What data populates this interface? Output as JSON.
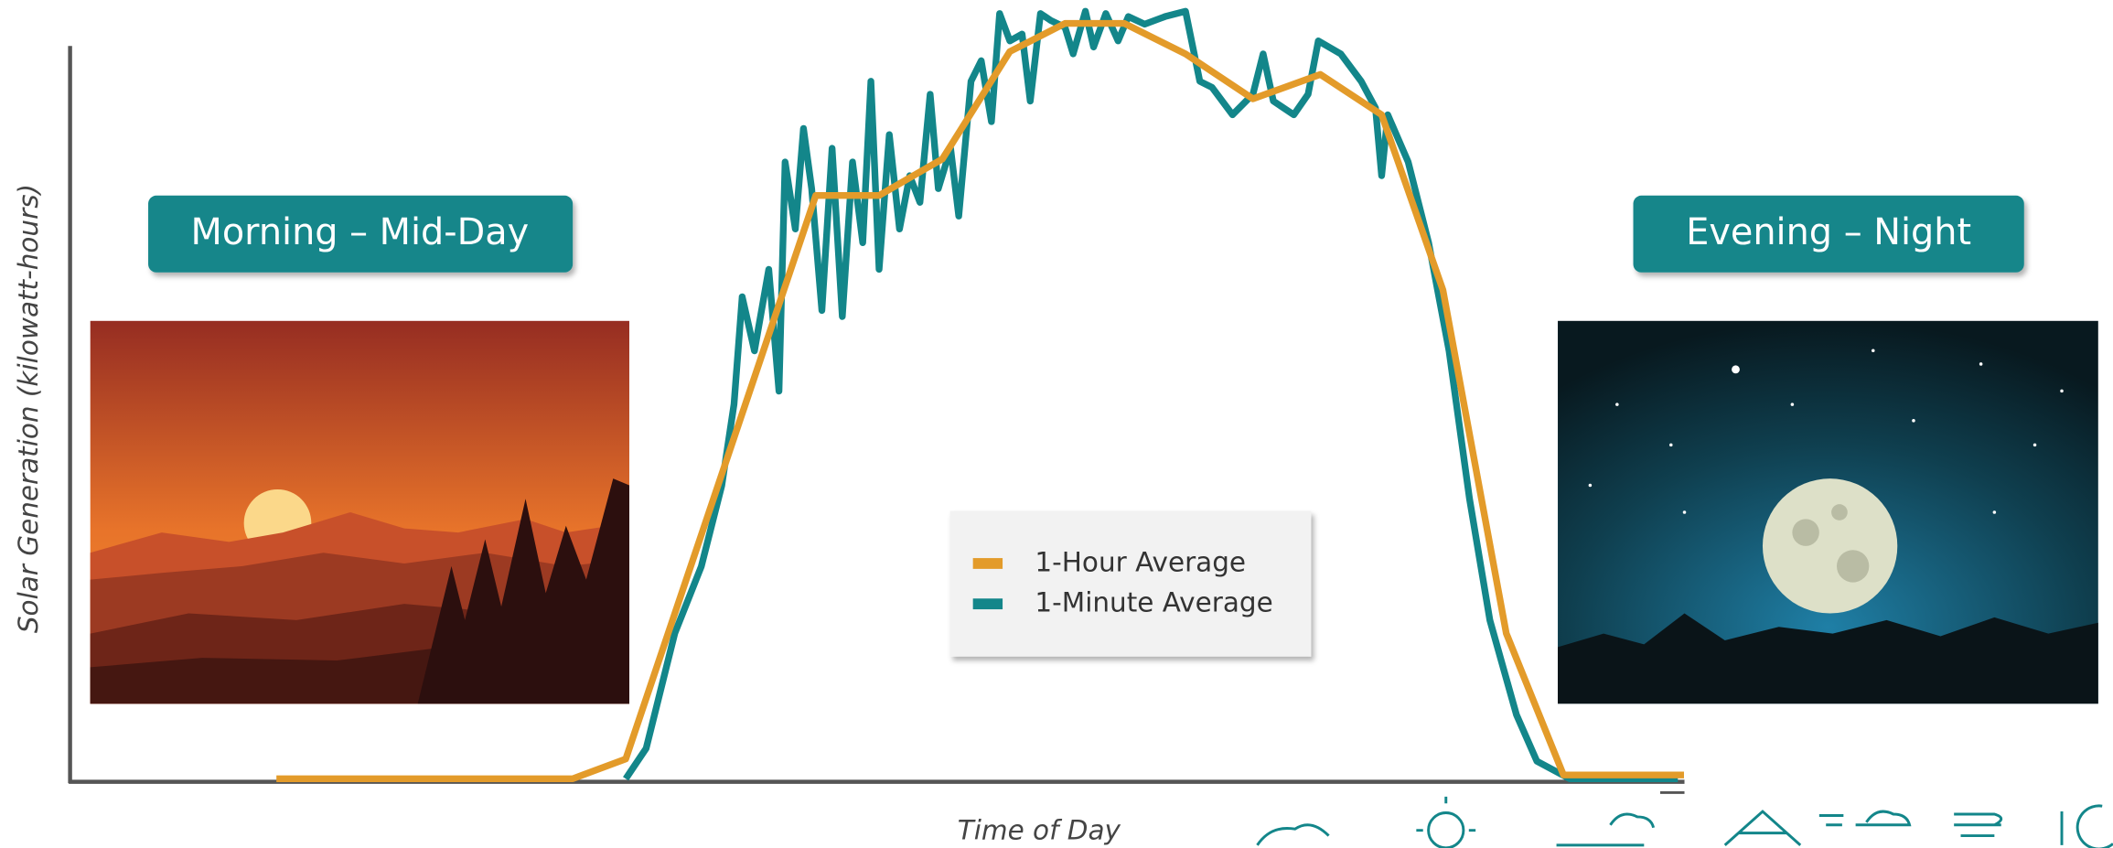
{
  "chart_data": {
    "type": "line",
    "y_label": "Solar Generation (kilowatt-hours)",
    "x_label": "Time of Day",
    "annotations": [
      "Morning – Mid-Day",
      "Evening – Night"
    ],
    "legend": "center",
    "xlim": [
      0,
      100
    ],
    "ylim": [
      0,
      100
    ],
    "series": [
      {
        "name": "1-Hour Average",
        "color": "#e39b2a",
        "x": [
          10.1,
          24.6,
          27.2,
          36.5,
          39.6,
          42.7,
          46.0,
          48.7,
          51.6,
          54.6,
          57.9,
          61.2,
          64.2,
          67.2,
          70.3,
          73.1,
          79.0
        ],
        "values": [
          0.4,
          0.4,
          3.0,
          77.0,
          77.0,
          81.8,
          95.9,
          99.6,
          99.6,
          95.6,
          89.7,
          92.9,
          87.6,
          64.6,
          19.5,
          0.9,
          0.9
        ]
      },
      {
        "name": "1-Minute Average",
        "color": "#13868a",
        "x": [
          27.2,
          28.2,
          29.6,
          30.9,
          31.9,
          32.5,
          32.9,
          33.5,
          34.2,
          34.7,
          35.0,
          35.5,
          35.9,
          36.3,
          36.8,
          37.3,
          37.8,
          38.3,
          38.8,
          39.2,
          39.6,
          40.1,
          40.6,
          41.1,
          41.6,
          42.1,
          42.5,
          43.1,
          43.5,
          44.1,
          44.6,
          45.1,
          45.5,
          46.0,
          46.6,
          47.0,
          47.5,
          48.0,
          48.7,
          49.1,
          49.7,
          50.1,
          50.7,
          51.3,
          51.8,
          52.6,
          53.6,
          54.6,
          55.3,
          55.9,
          56.9,
          57.9,
          58.4,
          58.9,
          59.9,
          60.6,
          61.1,
          62.2,
          63.2,
          63.9,
          64.2,
          64.5,
          65.5,
          66.5,
          67.5,
          68.5,
          69.5,
          70.8,
          71.8,
          73.4,
          78.7
        ],
        "values": [
          0.4,
          4.4,
          19.5,
          28.3,
          38.9,
          49.6,
          63.7,
          56.6,
          67.3,
          51.3,
          81.4,
          72.6,
          85.8,
          77.9,
          61.9,
          83.2,
          61.1,
          81.4,
          70.8,
          92.0,
          67.3,
          85.0,
          72.6,
          79.6,
          76.1,
          90.3,
          77.9,
          83.2,
          74.3,
          92.0,
          94.7,
          86.7,
          100.9,
          97.3,
          98.2,
          89.4,
          100.9,
          100.0,
          99.1,
          95.6,
          101.2,
          96.5,
          100.9,
          97.3,
          100.5,
          99.5,
          100.5,
          101.2,
          92.0,
          91.2,
          87.6,
          90.3,
          95.6,
          89.4,
          87.6,
          90.3,
          97.3,
          95.6,
          92.0,
          88.5,
          79.6,
          87.6,
          81.4,
          70.8,
          56.6,
          37.2,
          21.2,
          8.8,
          2.7,
          0.4,
          0.4
        ]
      }
    ]
  }
}
